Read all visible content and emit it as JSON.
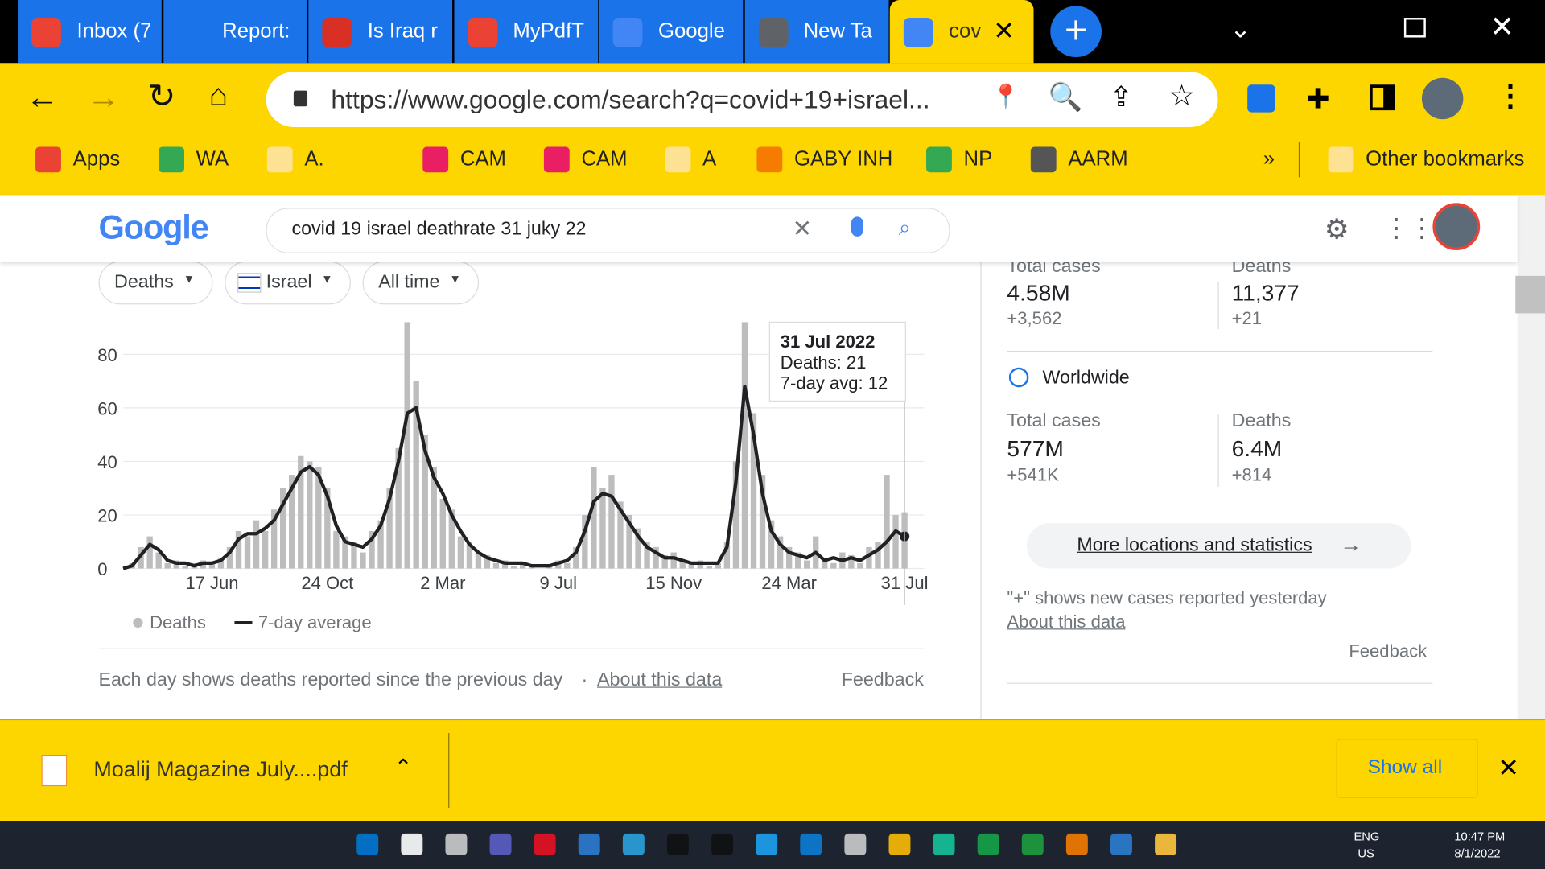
{
  "tabs": [
    "Inbox (7",
    "Report:",
    "Is Iraq r",
    "MyPdfT",
    "Google",
    "New Ta",
    "cov"
  ],
  "address": "https://www.google.com/search?q=covid+19+israel...",
  "bookmarks": [
    "Apps",
    "WA",
    "A.",
    "CAM",
    "CAM",
    "A",
    "GABY INH",
    "NP",
    "AARM",
    "»",
    "Other bookmarks"
  ],
  "search": {
    "logo": "Google",
    "query": "covid 19 israel deathrate 31 juky 22"
  },
  "filters": [
    "Deaths",
    "Israel",
    "All time"
  ],
  "chart": {
    "type": "bar",
    "categories": [
      null,
      null,
      null,
      null,
      null,
      null,
      null,
      null,
      null,
      null,
      "17 Jun",
      null,
      null,
      null,
      null,
      null,
      null,
      null,
      null,
      null,
      null,
      null,
      null,
      "24 Oct",
      null,
      null,
      null,
      null,
      null,
      null,
      null,
      null,
      null,
      null,
      null,
      null,
      "2 Mar",
      null,
      null,
      null,
      null,
      null,
      null,
      null,
      null,
      null,
      null,
      null,
      null,
      "9 Jul",
      null,
      null,
      null,
      null,
      null,
      null,
      null,
      null,
      null,
      null,
      null,
      null,
      "15 Nov",
      null,
      null,
      null,
      null,
      null,
      null,
      null,
      null,
      null,
      null,
      null,
      null,
      "24 Mar",
      null,
      null,
      null,
      null,
      null,
      null,
      null,
      null,
      null,
      null,
      null,
      null,
      "31 Jul"
    ],
    "series": [
      {
        "name": "Deaths",
        "type": "bar",
        "color": "#bdbdbd",
        "values": [
          0,
          2,
          8,
          12,
          6,
          2,
          3,
          1,
          2,
          3,
          2,
          4,
          8,
          14,
          12,
          18,
          14,
          22,
          30,
          35,
          42,
          40,
          38,
          30,
          14,
          12,
          10,
          6,
          14,
          18,
          30,
          45,
          92,
          70,
          50,
          38,
          26,
          22,
          12,
          10,
          6,
          5,
          2,
          3,
          1,
          2,
          1,
          0,
          1,
          3,
          2,
          8,
          20,
          38,
          30,
          35,
          25,
          20,
          15,
          10,
          8,
          5,
          6,
          3,
          2,
          3,
          1,
          2,
          10,
          40,
          92,
          58,
          35,
          18,
          12,
          8,
          6,
          3,
          12,
          4,
          2,
          6,
          5,
          2,
          8,
          10,
          35,
          20,
          21
        ]
      },
      {
        "name": "7-day average",
        "type": "line",
        "color": "#202124",
        "values": [
          0,
          1,
          5,
          9,
          7,
          3,
          2,
          2,
          1,
          2,
          2,
          3,
          6,
          11,
          13,
          13,
          15,
          18,
          24,
          30,
          36,
          38,
          35,
          27,
          16,
          10,
          9,
          8,
          11,
          16,
          26,
          40,
          58,
          60,
          44,
          34,
          28,
          20,
          14,
          9,
          6,
          4,
          3,
          2,
          2,
          2,
          1,
          1,
          1,
          2,
          3,
          6,
          14,
          25,
          28,
          27,
          22,
          17,
          12,
          8,
          6,
          4,
          4,
          3,
          2,
          2,
          2,
          2,
          8,
          32,
          68,
          50,
          28,
          14,
          9,
          6,
          5,
          4,
          6,
          3,
          4,
          3,
          4,
          3,
          5,
          7,
          10,
          14,
          12
        ]
      }
    ],
    "ylim": [
      0,
      92
    ],
    "yticks": [
      0,
      20,
      40,
      60,
      80
    ],
    "grid": true,
    "tooltip": {
      "title": "31 Jul 2022",
      "deaths": "Deaths: 21",
      "avg": "7-day avg: 12"
    }
  },
  "chart_note": {
    "text": "Each day shows deaths reported since the previous day",
    "about": "About this data",
    "feedback": "Feedback"
  },
  "stats": {
    "israel": {
      "cases_label": "Total cases",
      "cases": "4.58M",
      "cases_new": "+3,562",
      "deaths_label": "Deaths",
      "deaths": "11,377",
      "deaths_new": "+21"
    },
    "world_title": "Worldwide",
    "world": {
      "cases_label": "Total cases",
      "cases": "577M",
      "cases_new": "+541K",
      "deaths_label": "Deaths",
      "deaths": "6.4M",
      "deaths_new": "+814"
    },
    "more": "More locations and statistics",
    "note": "\"+\" shows new cases reported yesterday",
    "about": "About this data",
    "feedback": "Feedback"
  },
  "download": {
    "file": "Moalij Magazine July....pdf",
    "show_all": "Show all"
  },
  "taskbar": {
    "lang": "ENG",
    "region": "US",
    "time": "10:47 PM",
    "date": "8/1/2022"
  }
}
